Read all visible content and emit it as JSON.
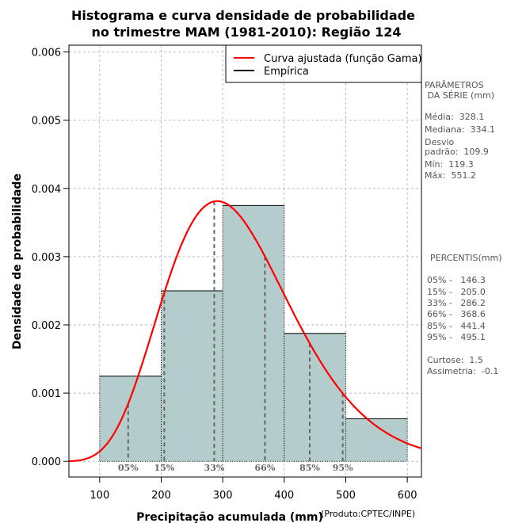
{
  "chart_data": {
    "type": "bar",
    "title": [
      "Histograma e curva densidade de probabilidade",
      "no trimestre MAM (1981-2010): Região 124"
    ],
    "xlabel": "Precipitação acumulada (mm)",
    "ylabel": "Densidade de probabilidade",
    "credit": "(Produto:CPTEC/INPE)",
    "xlim": [
      50,
      623
    ],
    "ylim": [
      -0.00023,
      0.0061
    ],
    "x_ticks": [
      100,
      200,
      300,
      400,
      500,
      600
    ],
    "x_tick_labels": [
      "100",
      "200",
      "300",
      "400",
      "500",
      "600"
    ],
    "y_ticks": [
      0.0,
      0.001,
      0.002,
      0.003,
      0.004,
      0.005,
      0.006
    ],
    "y_tick_labels": [
      "0.000",
      "0.001",
      "0.002",
      "0.003",
      "0.004",
      "0.005",
      "0.006"
    ],
    "grid": true,
    "histogram": {
      "bins": [
        [
          100,
          200
        ],
        [
          200,
          300
        ],
        [
          300,
          400
        ],
        [
          400,
          500
        ],
        [
          500,
          600
        ]
      ],
      "density": [
        0.00125,
        0.0025,
        0.00375,
        0.001875,
        0.000625
      ],
      "color": "#b4cccc"
    },
    "fitted_curve": {
      "name": "Curva ajustada (função Gama)",
      "distribution": "gamma",
      "shape": 8.91,
      "scale": 36.8,
      "color": "#ff0000"
    },
    "legend": {
      "position": "top-right",
      "entries": [
        {
          "label": "Curva ajustada (função Gama)",
          "color": "#ff0000"
        },
        {
          "label": "Empírica",
          "color": "#000000"
        }
      ]
    },
    "percentile_lines": [
      {
        "label": "05%",
        "value": 146.3
      },
      {
        "label": "15%",
        "value": 205.0
      },
      {
        "label": "33%",
        "value": 286.2
      },
      {
        "label": "66%",
        "value": 368.6
      },
      {
        "label": "85%",
        "value": 441.4
      },
      {
        "label": "95%",
        "value": 495.1
      }
    ]
  },
  "side_panel": {
    "params_title": [
      "PARÂMETROS",
      " DA SÉRIE (mm)"
    ],
    "params": [
      "Média:  328.1",
      "Mediana:  334.1",
      "Desvio",
      "padrão:  109.9",
      "Mín:  119.3",
      "Máx:  551.2"
    ],
    "percentis_title": "PERCENTIS(mm)",
    "percentis": [
      "05% -   146.3",
      "15% -   205.0",
      "33% -   286.2",
      "66% -   368.6",
      "85% -   441.4",
      "95% -   495.1"
    ],
    "extra": [
      "Curtose:  1.5",
      "Assimetria:  -0.1"
    ]
  }
}
